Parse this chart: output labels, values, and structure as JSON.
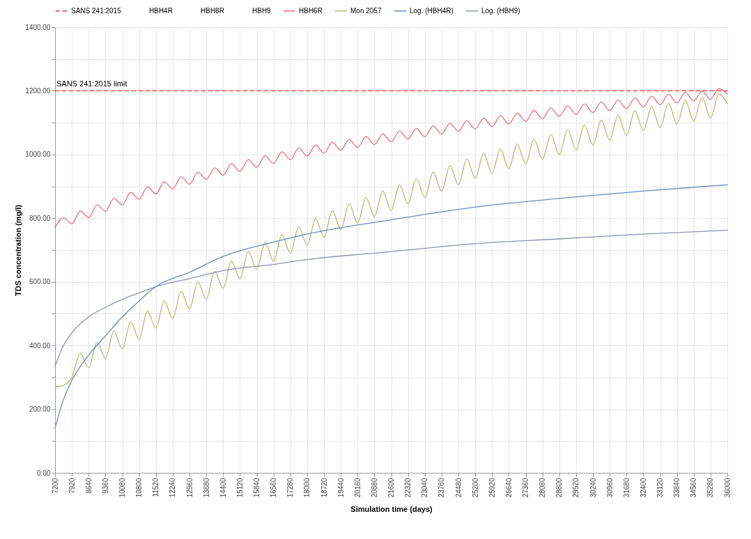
{
  "chart_data": {
    "type": "line",
    "xlabel": "Simulation time (days)",
    "ylabel": "TDS concentration (mg/l)",
    "xlim": [
      7200,
      36000
    ],
    "xticks": [
      7200,
      7920,
      8640,
      9360,
      10080,
      10800,
      11520,
      12240,
      12960,
      13680,
      14400,
      15120,
      15840,
      16560,
      17280,
      18000,
      18720,
      19440,
      20160,
      20880,
      21600,
      22320,
      23040,
      23760,
      24480,
      25200,
      25920,
      26640,
      27360,
      28080,
      28800,
      29520,
      30240,
      30960,
      31680,
      32400,
      33120,
      33840,
      34560,
      35280,
      36000
    ],
    "ylim": [
      0,
      1400
    ],
    "yticks": [
      {
        "value": 0,
        "label": "0.00"
      },
      {
        "value": 100,
        "label": null
      },
      {
        "value": 200,
        "label": "200.00"
      },
      {
        "value": 300,
        "label": null
      },
      {
        "value": 400,
        "label": "400.00"
      },
      {
        "value": 500,
        "label": null
      },
      {
        "value": 600,
        "label": "600.00"
      },
      {
        "value": 700,
        "label": null
      },
      {
        "value": 800,
        "label": "800.00"
      },
      {
        "value": 900,
        "label": null
      },
      {
        "value": 1000,
        "label": "1000.00"
      },
      {
        "value": 1100,
        "label": null
      },
      {
        "value": 1200,
        "label": "1200.00"
      },
      {
        "value": 1300,
        "label": null
      },
      {
        "value": 1400,
        "label": "1400.00"
      }
    ],
    "grid": true,
    "legend": "top",
    "line_style": "solid",
    "annotations": [
      {
        "text": "SANS 241:2015 limit",
        "x": 7200,
        "y": 1200
      }
    ],
    "x": [
      7200,
      7560,
      7920,
      8280,
      8640,
      9000,
      9360,
      9720,
      10080,
      10440,
      10800,
      11160,
      11520,
      11880,
      12240,
      12600,
      12960,
      13320,
      13680,
      14040,
      14400,
      14760,
      15120,
      15480,
      15840,
      16200,
      16560,
      16920,
      17280,
      17640,
      18000,
      18360,
      18720,
      19080,
      19440,
      19800,
      20160,
      20520,
      20880,
      21240,
      21600,
      21960,
      22320,
      22680,
      23040,
      23400,
      23760,
      24120,
      24480,
      24840,
      25200,
      25560,
      25920,
      26280,
      26640,
      27000,
      27360,
      27720,
      28080,
      28440,
      28800,
      29160,
      29520,
      29880,
      30240,
      30600,
      30960,
      31320,
      31680,
      32040,
      32400,
      32760,
      33120,
      33480,
      33840,
      34200,
      34560,
      34920,
      35280,
      35640,
      36000
    ],
    "series": [
      {
        "name": "SANS 241:2015",
        "color": "#e8303a",
        "line_style": "dashed",
        "x": [
          7200,
          36000
        ],
        "values": [
          1200,
          1200
        ]
      },
      {
        "name": "HBH4R",
        "values": [
          null,
          null,
          null,
          null,
          null,
          null,
          null,
          null,
          null,
          null,
          null,
          null,
          null,
          null,
          null,
          null,
          null,
          null,
          null,
          null,
          null,
          null,
          null,
          null,
          null,
          null,
          null,
          null,
          null,
          null,
          null,
          null,
          null,
          null,
          null,
          null,
          null,
          null,
          null,
          null,
          null,
          null,
          null,
          null,
          null,
          null,
          null,
          null,
          null,
          null,
          null,
          null,
          null,
          null,
          null,
          null,
          null,
          null,
          null,
          null,
          null,
          null,
          null,
          null,
          null,
          null,
          null,
          null,
          null,
          null,
          null,
          null,
          null,
          null,
          null,
          null,
          null,
          null,
          null,
          null,
          null
        ]
      },
      {
        "name": "HBH8R",
        "values": [
          null,
          null,
          null,
          null,
          null,
          null,
          null,
          null,
          null,
          null,
          null,
          null,
          null,
          null,
          null,
          null,
          null,
          null,
          null,
          null,
          null,
          null,
          null,
          null,
          null,
          null,
          null,
          null,
          null,
          null,
          null,
          null,
          null,
          null,
          null,
          null,
          null,
          null,
          null,
          null,
          null,
          null,
          null,
          null,
          null,
          null,
          null,
          null,
          null,
          null,
          null,
          null,
          null,
          null,
          null,
          null,
          null,
          null,
          null,
          null,
          null,
          null,
          null,
          null,
          null,
          null,
          null,
          null,
          null,
          null,
          null,
          null,
          null,
          null,
          null,
          null,
          null,
          null,
          null,
          null,
          null
        ]
      },
      {
        "name": "HBH9",
        "values": [
          null,
          null,
          null,
          null,
          null,
          null,
          null,
          null,
          null,
          null,
          null,
          null,
          null,
          null,
          null,
          null,
          null,
          null,
          null,
          null,
          null,
          null,
          null,
          null,
          null,
          null,
          null,
          null,
          null,
          null,
          null,
          null,
          null,
          null,
          null,
          null,
          null,
          null,
          null,
          null,
          null,
          null,
          null,
          null,
          null,
          null,
          null,
          null,
          null,
          null,
          null,
          null,
          null,
          null,
          null,
          null,
          null,
          null,
          null,
          null,
          null,
          null,
          null,
          null,
          null,
          null,
          null,
          null,
          null,
          null,
          null,
          null,
          null,
          null,
          null,
          null,
          null,
          null,
          null,
          null,
          null
        ]
      },
      {
        "name": "HBH6R",
        "color": "#e8707a",
        "values": [
          770,
          801,
          782,
          822,
          802,
          842,
          822,
          862,
          842,
          881,
          860,
          898,
          876,
          914,
          892,
          930,
          907,
          944,
          922,
          958,
          935,
          971,
          947,
          984,
          960,
          996,
          972,
          1008,
          984,
          1020,
          995,
          1030,
          1004,
          1038,
          1013,
          1047,
          1022,
          1056,
          1031,
          1065,
          1040,
          1074,
          1048,
          1082,
          1056,
          1090,
          1064,
          1098,
          1072,
          1106,
          1080,
          1114,
          1088,
          1122,
          1096,
          1130,
          1104,
          1138,
          1112,
          1146,
          1120,
          1153,
          1126,
          1159,
          1132,
          1165,
          1138,
          1171,
          1144,
          1177,
          1150,
          1183,
          1156,
          1189,
          1162,
          1195,
          1168,
          1199,
          1174,
          1207,
          1190
        ]
      },
      {
        "name": "Mon 2057",
        "color": "#b8b878",
        "values": [
          270,
          275,
          300,
          375,
          330,
          410,
          360,
          445,
          390,
          475,
          420,
          508,
          455,
          540,
          485,
          570,
          515,
          600,
          545,
          633,
          580,
          665,
          610,
          695,
          640,
          723,
          665,
          748,
          690,
          773,
          715,
          798,
          740,
          823,
          765,
          845,
          785,
          865,
          805,
          885,
          825,
          905,
          845,
          925,
          865,
          945,
          885,
          965,
          905,
          985,
          925,
          1003,
          940,
          1018,
          955,
          1033,
          970,
          1048,
          985,
          1063,
          1000,
          1078,
          1015,
          1093,
          1030,
          1108,
          1045,
          1123,
          1060,
          1138,
          1075,
          1150,
          1085,
          1160,
          1095,
          1170,
          1105,
          1180,
          1115,
          1190,
          1160
        ]
      },
      {
        "name": "Log. (HBH4R)",
        "color": "#6f88b8",
        "x": [
          7200,
          7560,
          7920,
          8640,
          9360,
          10080,
          10800,
          11520,
          12960,
          14400,
          16560,
          18000,
          21600,
          25200,
          28800,
          32400,
          36000
        ],
        "values": [
          140,
          230,
          290,
          370,
          430,
          490,
          540,
          585,
          630,
          680,
          725,
          750,
          795,
          835,
          862,
          885,
          905
        ]
      },
      {
        "name": "Log. (HBH9)",
        "color": "#8c93a8",
        "x": [
          7200,
          7560,
          7920,
          8640,
          9360,
          10080,
          10800,
          11520,
          12960,
          14400,
          16560,
          18000,
          21600,
          25200,
          28800,
          32400,
          36000
        ],
        "values": [
          335,
          400,
          440,
          490,
          520,
          545,
          565,
          585,
          610,
          635,
          655,
          670,
          695,
          720,
          735,
          750,
          762
        ]
      }
    ]
  }
}
